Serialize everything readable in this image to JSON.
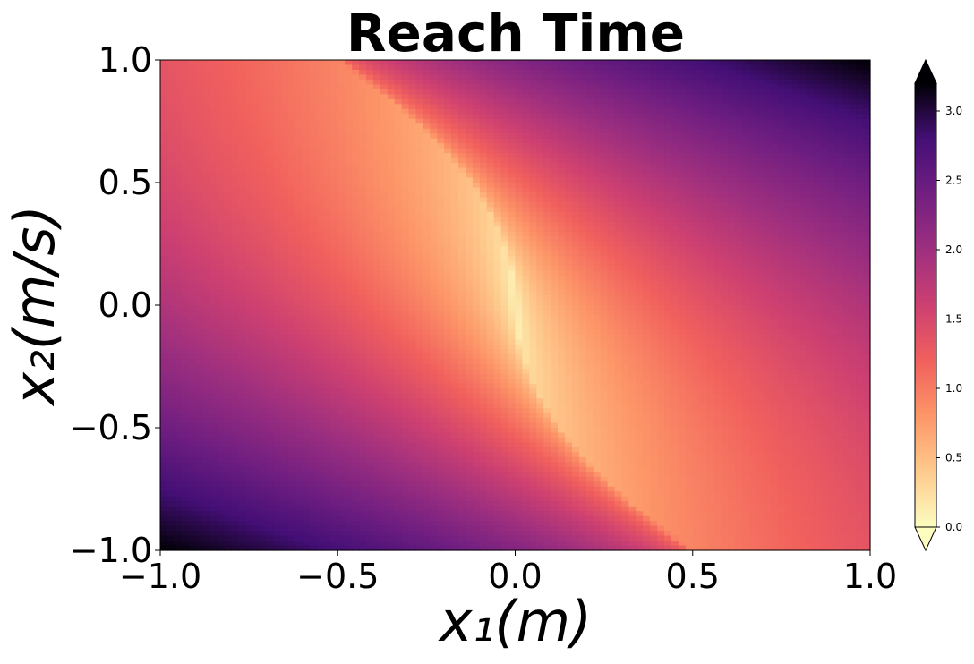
{
  "chart_data": {
    "type": "heatmap",
    "title": "Reach Time",
    "xlabel": "x₁(m)",
    "ylabel": "x₂(m/s)",
    "xlim": [
      -1.0,
      1.0
    ],
    "ylim": [
      -1.0,
      1.0
    ],
    "x_ticks": [
      "−1.0",
      "−0.5",
      "0.0",
      "0.5",
      "1.0"
    ],
    "y_ticks": [
      "1.0",
      "0.5",
      "0.0",
      "−0.5",
      "−1.0"
    ],
    "x_tick_values": [
      -1.0,
      -0.5,
      0.0,
      0.5,
      1.0
    ],
    "y_tick_values": [
      1.0,
      0.5,
      0.0,
      -0.5,
      -1.0
    ],
    "colormap": "magma_r",
    "colorbar": {
      "min": 0.0,
      "max": 3.2,
      "extend": "both",
      "ticks": [
        "0.0",
        "0.5",
        "1.0",
        "1.5",
        "2.0",
        "2.5",
        "3.0"
      ],
      "tick_values": [
        0.0,
        0.5,
        1.0,
        1.5,
        2.0,
        2.5,
        3.0
      ]
    },
    "grid": false,
    "samples": [
      {
        "x": -1.0,
        "y": 1.0,
        "value": 1.2
      },
      {
        "x": -0.5,
        "y": 1.0,
        "value": 0.9
      },
      {
        "x": 0.0,
        "y": 0.9,
        "value": 1.6
      },
      {
        "x": 0.5,
        "y": 1.0,
        "value": 2.5
      },
      {
        "x": 1.0,
        "y": 1.0,
        "value": 3.2
      },
      {
        "x": -0.02,
        "y": 0.0,
        "value": 0.0
      },
      {
        "x": 0.5,
        "y": 0.0,
        "value": 1.3
      },
      {
        "x": 1.0,
        "y": 0.0,
        "value": 1.6
      },
      {
        "x": -1.0,
        "y": 0.0,
        "value": 1.4
      },
      {
        "x": -0.5,
        "y": 0.0,
        "value": 0.7
      },
      {
        "x": -1.0,
        "y": -1.0,
        "value": 3.2
      },
      {
        "x": -0.5,
        "y": -1.0,
        "value": 2.5
      },
      {
        "x": 0.0,
        "y": -0.9,
        "value": 1.6
      },
      {
        "x": 0.5,
        "y": -1.0,
        "value": 0.9
      },
      {
        "x": 1.0,
        "y": -1.0,
        "value": 1.2
      }
    ]
  }
}
